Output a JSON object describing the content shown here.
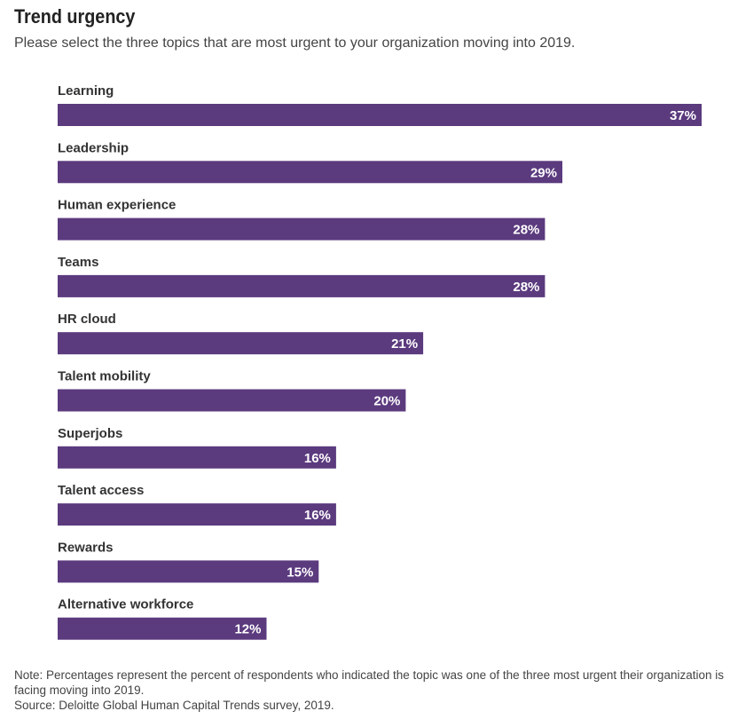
{
  "header": {
    "title": "Trend urgency",
    "subtitle": "Please select the three topics that are most urgent to your organization moving into 2019."
  },
  "chart_data": {
    "type": "bar",
    "orientation": "horizontal",
    "categories": [
      "Learning",
      "Leadership",
      "Human experience",
      "Teams",
      "HR cloud",
      "Talent mobility",
      "Superjobs",
      "Talent access",
      "Rewards",
      "Alternative workforce"
    ],
    "values": [
      37,
      29,
      28,
      28,
      21,
      20,
      16,
      16,
      15,
      12
    ],
    "value_labels": [
      "37%",
      "29%",
      "28%",
      "28%",
      "21%",
      "20%",
      "16%",
      "16%",
      "15%",
      "12%"
    ],
    "unit": "%",
    "grid": false,
    "legend": "none",
    "bar_color": "#5b3a7e"
  },
  "footer": {
    "note": "Note: Percentages represent the percent of respondents who indicated the topic was one of the three most urgent their organization is facing moving into 2019.",
    "source": "Source: Deloitte Global Human Capital Trends survey, 2019."
  }
}
